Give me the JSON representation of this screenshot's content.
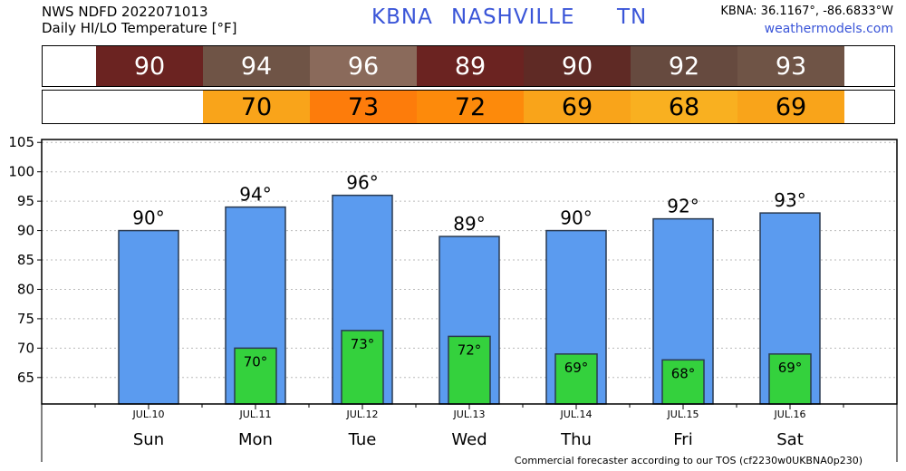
{
  "header": {
    "line1": "NWS NDFD 2022071013",
    "line2": "Daily HI/LO Temperature [°F]",
    "station": "KBNA",
    "city": "NASHVILLE",
    "state": "TN",
    "coords": "KBNA: 36.1167°, -86.6833°W",
    "site": "weathermodels.com"
  },
  "hi_strip": {
    "values": [
      90,
      94,
      96,
      89,
      90,
      92,
      93
    ],
    "colors": [
      "#6b2321",
      "#6f5446",
      "#8a6a5b",
      "#6b2321",
      "#5f2a25",
      "#664a3f",
      "#6f5446"
    ]
  },
  "lo_strip": {
    "values": [
      null,
      70,
      73,
      72,
      69,
      68,
      69
    ],
    "colors": [
      null,
      "#f9a41a",
      "#fd7c0b",
      "#fd8a0b",
      "#f9a41a",
      "#f9b020",
      "#f9a41a"
    ]
  },
  "chart_data": {
    "type": "bar",
    "categories": [
      "Sun",
      "Mon",
      "Tue",
      "Wed",
      "Thu",
      "Fri",
      "Sat"
    ],
    "dates": [
      "JUL.10",
      "JUL.11",
      "JUL.12",
      "JUL.13",
      "JUL.14",
      "JUL.15",
      "JUL.16"
    ],
    "series": [
      {
        "values": [
          90,
          94,
          96,
          89,
          90,
          92,
          93
        ],
        "color": "#5b9bef"
      },
      {
        "values": [
          null,
          70,
          73,
          72,
          69,
          68,
          69
        ],
        "color": "#34d13d"
      }
    ],
    "hi_labels": [
      "90°",
      "94°",
      "96°",
      "89°",
      "90°",
      "92°",
      "93°"
    ],
    "lo_labels": [
      "",
      "70°",
      "73°",
      "72°",
      "69°",
      "68°",
      "69°"
    ],
    "yticks": [
      65,
      70,
      75,
      80,
      85,
      90,
      95,
      100,
      105
    ],
    "ylim": [
      60.5,
      105.5
    ],
    "grid": true
  },
  "footer": "Commercial forecaster according to our TOS (cf2230w0UKBNA0p230)"
}
